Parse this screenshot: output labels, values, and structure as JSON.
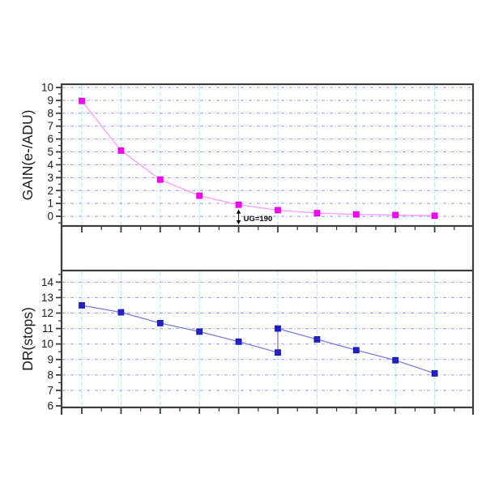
{
  "palette": {
    "background": "#ffffff",
    "frame": "#3d3d3d",
    "h_grid": "#9a9ae4",
    "v_grid": "#aeeef0",
    "tick_label": "#1c1c1c",
    "axis_title": "#1c1c1c",
    "annotation": "#000000"
  },
  "chart_data": [
    {
      "id": "gain",
      "type": "line",
      "title": "",
      "xlabel": "",
      "ylabel": "GAIN(e-/ADU)",
      "ylim": [
        -0.75,
        10.25
      ],
      "ytick_values": [
        0,
        1,
        2,
        3,
        4,
        5,
        6,
        7,
        8,
        9,
        10
      ],
      "ytick_labels": [
        "0",
        "1",
        "2",
        "3",
        "4",
        "5",
        "6",
        "7",
        "8",
        "9",
        "10"
      ],
      "x_slots": 10,
      "xtick_labels": [],
      "grid": {
        "horizontal": true,
        "vertical": true
      },
      "legend": null,
      "series": [
        {
          "name": "GAIN",
          "marker": "square",
          "line_color": "#ff9aff",
          "marker_color": "#ff00ff",
          "marker_edge": "#d900d9",
          "points": [
            [
              0,
              8.95
            ],
            [
              1,
              5.1
            ],
            [
              2,
              2.85
            ],
            [
              3,
              1.6
            ],
            [
              4,
              0.9
            ],
            [
              5,
              0.48
            ],
            [
              6,
              0.25
            ],
            [
              7,
              0.15
            ],
            [
              8,
              0.1
            ],
            [
              9,
              0.05
            ]
          ]
        }
      ],
      "annotation": {
        "text": "UG=190",
        "point_index": 4
      }
    },
    {
      "id": "dr",
      "type": "line",
      "title": "",
      "xlabel": "",
      "ylabel": "DR(stops)",
      "ylim": [
        5.9,
        14.75
      ],
      "ytick_values": [
        6,
        7,
        8,
        9,
        10,
        11,
        12,
        13,
        14
      ],
      "ytick_labels": [
        "6",
        "7",
        "8",
        "9",
        "10",
        "11",
        "12",
        "13",
        "14"
      ],
      "x_slots": 10,
      "xtick_labels": [],
      "grid": {
        "horizontal": true,
        "vertical": true
      },
      "legend": null,
      "series": [
        {
          "name": "DR",
          "marker": "square",
          "line_color": "#7b7bdb",
          "marker_color": "#2121cb",
          "marker_edge": "#14149e",
          "points": [
            [
              0,
              12.5
            ],
            [
              1,
              12.05
            ],
            [
              2,
              11.35
            ],
            [
              3,
              10.8
            ],
            [
              4,
              10.15
            ],
            [
              5,
              9.45
            ],
            [
              5,
              11.0
            ],
            [
              6,
              10.3
            ],
            [
              7,
              9.6
            ],
            [
              8,
              8.95
            ],
            [
              9,
              8.1
            ]
          ]
        }
      ],
      "annotation": null
    }
  ]
}
